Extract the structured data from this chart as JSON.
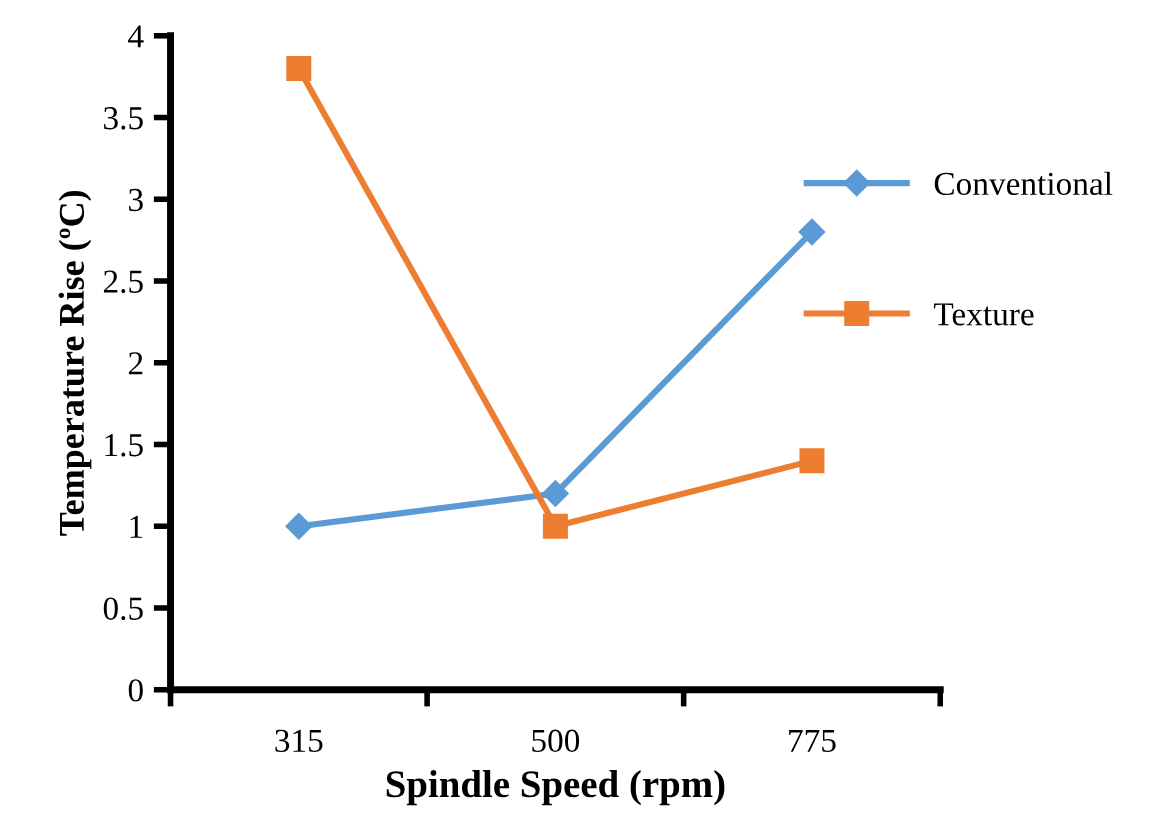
{
  "chart_data": {
    "type": "line",
    "xlabel": "Spindle Speed (rpm)",
    "ylabel": "Temperature Rise (ºC)",
    "categories": [
      "315",
      "500",
      "775"
    ],
    "series": [
      {
        "name": "Conventional",
        "color": "#5b9bd5",
        "marker": "diamond",
        "values": [
          1.0,
          1.2,
          2.8
        ]
      },
      {
        "name": "Texture",
        "color": "#ed7d31",
        "marker": "square",
        "values": [
          3.8,
          1.0,
          1.4
        ]
      }
    ],
    "ylim": [
      0,
      4
    ],
    "yticks": [
      0,
      0.5,
      1,
      1.5,
      2,
      2.5,
      3,
      3.5,
      4
    ],
    "grid": false,
    "legend": "right"
  }
}
